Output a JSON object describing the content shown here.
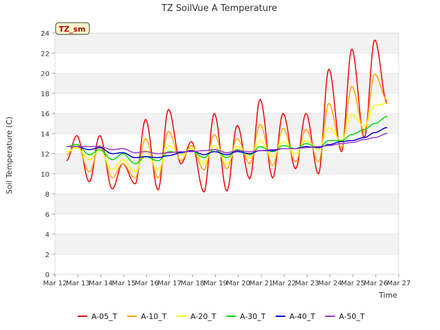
{
  "chart_data": {
    "type": "line",
    "title": "TZ SoilVue A Temperature",
    "xlabel": "Time",
    "ylabel": "Soil Temperature (C)",
    "badge": "TZ_sm",
    "ylim": [
      0,
      24
    ],
    "xlim": [
      0,
      15
    ],
    "yticks": [
      0,
      2,
      4,
      6,
      8,
      10,
      12,
      14,
      16,
      18,
      20,
      22,
      24
    ],
    "xticks": [
      {
        "v": 0,
        "label": "Mar 12"
      },
      {
        "v": 1,
        "label": "Mar 13"
      },
      {
        "v": 2,
        "label": "Mar 14"
      },
      {
        "v": 3,
        "label": "Mar 15"
      },
      {
        "v": 4,
        "label": "Mar 16"
      },
      {
        "v": 5,
        "label": "Mar 17"
      },
      {
        "v": 6,
        "label": "Mar 18"
      },
      {
        "v": 7,
        "label": "Mar 19"
      },
      {
        "v": 8,
        "label": "Mar 20"
      },
      {
        "v": 9,
        "label": "Mar 21"
      },
      {
        "v": 10,
        "label": "Mar 22"
      },
      {
        "v": 11,
        "label": "Mar 23"
      },
      {
        "v": 12,
        "label": "Mar 24"
      },
      {
        "v": 13,
        "label": "Mar 25"
      },
      {
        "v": 14,
        "label": "Mar 26"
      },
      {
        "v": 15,
        "label": "Mar 27"
      }
    ],
    "grid": "horizontal bands",
    "legend_position": "bottom",
    "series": [
      {
        "name": "A-05_T",
        "color": "#ee0000",
        "daily": [
          [
            11.3,
            13.8
          ],
          [
            9.2,
            13.8
          ],
          [
            8.5,
            11.0
          ],
          [
            9.0,
            15.4
          ],
          [
            8.4,
            16.4
          ],
          [
            11.0,
            13.2
          ],
          [
            8.2,
            16.0
          ],
          [
            8.3,
            14.8
          ],
          [
            9.5,
            17.4
          ],
          [
            9.6,
            16.0
          ],
          [
            10.5,
            16.0
          ],
          [
            10.0,
            20.4
          ],
          [
            12.2,
            22.4
          ],
          [
            13.6,
            23.3
          ],
          [
            17.0,
            17.0
          ]
        ]
      },
      {
        "name": "A-10_T",
        "color": "#ffa500",
        "daily": [
          [
            11.9,
            12.9
          ],
          [
            10.2,
            12.8
          ],
          [
            9.6,
            11.0
          ],
          [
            9.6,
            13.5
          ],
          [
            9.6,
            14.2
          ],
          [
            11.3,
            12.8
          ],
          [
            10.4,
            13.9
          ],
          [
            10.5,
            13.5
          ],
          [
            11.0,
            14.9
          ],
          [
            10.8,
            14.5
          ],
          [
            11.2,
            14.4
          ],
          [
            11.2,
            17.0
          ],
          [
            12.6,
            18.7
          ],
          [
            14.2,
            19.9
          ],
          [
            17.3,
            17.3
          ]
        ]
      },
      {
        "name": "A-20_T",
        "color": "#ffff00",
        "daily": [
          [
            12.2,
            12.6
          ],
          [
            11.4,
            12.4
          ],
          [
            10.4,
            11.4
          ],
          [
            10.2,
            12.3
          ],
          [
            10.4,
            12.8
          ],
          [
            11.9,
            12.5
          ],
          [
            11.0,
            12.8
          ],
          [
            11.0,
            12.7
          ],
          [
            11.6,
            13.3
          ],
          [
            11.7,
            13.2
          ],
          [
            12.0,
            13.3
          ],
          [
            12.4,
            14.6
          ],
          [
            13.3,
            15.9
          ],
          [
            14.7,
            16.8
          ],
          [
            17.0,
            17.0
          ]
        ]
      },
      {
        "name": "A-30_T",
        "color": "#00dd00",
        "daily": [
          [
            12.7,
            12.9
          ],
          [
            11.9,
            12.4
          ],
          [
            11.4,
            12.0
          ],
          [
            11.0,
            11.7
          ],
          [
            11.3,
            12.2
          ],
          [
            12.1,
            12.3
          ],
          [
            11.6,
            12.4
          ],
          [
            11.6,
            12.4
          ],
          [
            11.9,
            12.7
          ],
          [
            12.2,
            12.8
          ],
          [
            12.5,
            13.0
          ],
          [
            12.6,
            13.3
          ],
          [
            13.3,
            13.9
          ],
          [
            14.4,
            15.0
          ],
          [
            15.7,
            15.7
          ]
        ]
      },
      {
        "name": "A-40_T",
        "color": "#0000cc",
        "daily": [
          [
            12.7,
            12.7
          ],
          [
            12.4,
            12.6
          ],
          [
            12.0,
            12.1
          ],
          [
            11.6,
            11.7
          ],
          [
            11.6,
            11.8
          ],
          [
            12.1,
            12.3
          ],
          [
            11.9,
            12.2
          ],
          [
            11.9,
            12.2
          ],
          [
            12.0,
            12.3
          ],
          [
            12.3,
            12.5
          ],
          [
            12.5,
            12.7
          ],
          [
            12.6,
            12.9
          ],
          [
            13.2,
            13.3
          ],
          [
            13.6,
            14.1
          ],
          [
            14.6,
            14.6
          ]
        ]
      },
      {
        "name": "A-50_T",
        "color": "#9933cc",
        "daily": [
          [
            12.7,
            12.7
          ],
          [
            12.7,
            12.7
          ],
          [
            12.4,
            12.5
          ],
          [
            12.1,
            12.2
          ],
          [
            12.0,
            12.1
          ],
          [
            12.2,
            12.2
          ],
          [
            12.3,
            12.4
          ],
          [
            12.1,
            12.3
          ],
          [
            12.2,
            12.3
          ],
          [
            12.4,
            12.5
          ],
          [
            12.5,
            12.6
          ],
          [
            12.7,
            12.8
          ],
          [
            13.0,
            13.1
          ],
          [
            13.4,
            13.6
          ],
          [
            14.0,
            14.0
          ]
        ]
      }
    ]
  }
}
